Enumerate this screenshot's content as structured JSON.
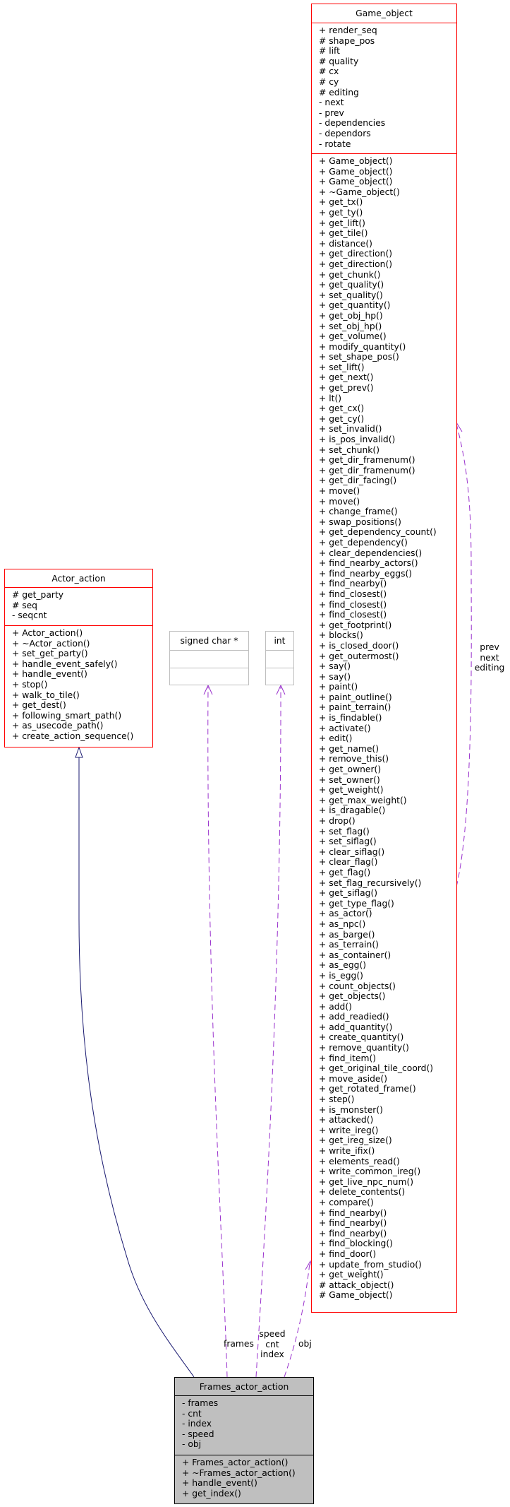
{
  "colors": {
    "class_border": "#ff0000",
    "external_border": "#bfbfbf",
    "focus_fill": "#bfbfbf",
    "inheritance_edge": "#191970",
    "usage_edge": "#9a32cd"
  },
  "classes": {
    "game_object": {
      "name": "Game_object",
      "attributes": [
        "+ render_seq",
        "# shape_pos",
        "# lift",
        "# quality",
        "# cx",
        "# cy",
        "# editing",
        "- next",
        "- prev",
        "- dependencies",
        "- dependors",
        "- rotate"
      ],
      "methods": [
        "+ Game_object()",
        "+ Game_object()",
        "+ Game_object()",
        "+ ~Game_object()",
        "+ get_tx()",
        "+ get_ty()",
        "+ get_lift()",
        "+ get_tile()",
        "+ distance()",
        "+ get_direction()",
        "+ get_direction()",
        "+ get_chunk()",
        "+ get_quality()",
        "+ set_quality()",
        "+ get_quantity()",
        "+ get_obj_hp()",
        "+ set_obj_hp()",
        "+ get_volume()",
        "+ modify_quantity()",
        "+ set_shape_pos()",
        "+ set_lift()",
        "+ get_next()",
        "+ get_prev()",
        "+ lt()",
        "+ get_cx()",
        "+ get_cy()",
        "+ set_invalid()",
        "+ is_pos_invalid()",
        "+ set_chunk()",
        "+ get_dir_framenum()",
        "+ get_dir_framenum()",
        "+ get_dir_facing()",
        "+ move()",
        "+ move()",
        "+ change_frame()",
        "+ swap_positions()",
        "+ get_dependency_count()",
        "+ get_dependency()",
        "+ clear_dependencies()",
        "+ find_nearby_actors()",
        "+ find_nearby_eggs()",
        "+ find_nearby()",
        "+ find_closest()",
        "+ find_closest()",
        "+ find_closest()",
        "+ get_footprint()",
        "+ blocks()",
        "+ is_closed_door()",
        "+ get_outermost()",
        "+ say()",
        "+ say()",
        "+ paint()",
        "+ paint_outline()",
        "+ paint_terrain()",
        "+ is_findable()",
        "+ activate()",
        "+ edit()",
        "+ get_name()",
        "+ remove_this()",
        "+ get_owner()",
        "+ set_owner()",
        "+ get_weight()",
        "+ get_max_weight()",
        "+ is_dragable()",
        "+ drop()",
        "+ set_flag()",
        "+ set_siflag()",
        "+ clear_siflag()",
        "+ clear_flag()",
        "+ get_flag()",
        "+ set_flag_recursively()",
        "+ get_siflag()",
        "+ get_type_flag()",
        "+ as_actor()",
        "+ as_npc()",
        "+ as_barge()",
        "+ as_terrain()",
        "+ as_container()",
        "+ as_egg()",
        "+ is_egg()",
        "+ count_objects()",
        "+ get_objects()",
        "+ add()",
        "+ add_readied()",
        "+ add_quantity()",
        "+ create_quantity()",
        "+ remove_quantity()",
        "+ find_item()",
        "+ get_original_tile_coord()",
        "+ move_aside()",
        "+ get_rotated_frame()",
        "+ step()",
        "+ is_monster()",
        "+ attacked()",
        "+ write_ireg()",
        "+ get_ireg_size()",
        "+ write_ifix()",
        "+ elements_read()",
        "+ write_common_ireg()",
        "+ get_live_npc_num()",
        "+ delete_contents()",
        "+ compare()",
        "+ find_nearby()",
        "+ find_nearby()",
        "+ find_nearby()",
        "+ find_blocking()",
        "+ find_door()",
        "+ update_from_studio()",
        "+ get_weight()",
        "# attack_object()",
        "# Game_object()"
      ]
    },
    "actor_action": {
      "name": "Actor_action",
      "attributes": [
        "# get_party",
        "# seq",
        "- seqcnt"
      ],
      "methods": [
        "+ Actor_action()",
        "+ ~Actor_action()",
        "+ set_get_party()",
        "+ handle_event_safely()",
        "+ handle_event()",
        "+ stop()",
        "+ walk_to_tile()",
        "+ get_dest()",
        "+ following_smart_path()",
        "+ as_usecode_path()",
        "+ create_action_sequence()"
      ]
    },
    "signed_char_ptr": {
      "name": "signed char *"
    },
    "int_type": {
      "name": "int"
    },
    "frames_actor_action": {
      "name": "Frames_actor_action",
      "attributes": [
        "- frames",
        "- cnt",
        "- index",
        "- speed",
        "- obj"
      ],
      "methods": [
        "+ Frames_actor_action()",
        "+ ~Frames_actor_action()",
        "+ handle_event()",
        "+ get_index()"
      ]
    }
  },
  "edge_labels": {
    "frames": "frames",
    "int_vars": [
      "speed",
      "cnt",
      "index"
    ],
    "obj": "obj",
    "self_loop": [
      "prev",
      "next",
      "editing"
    ]
  }
}
